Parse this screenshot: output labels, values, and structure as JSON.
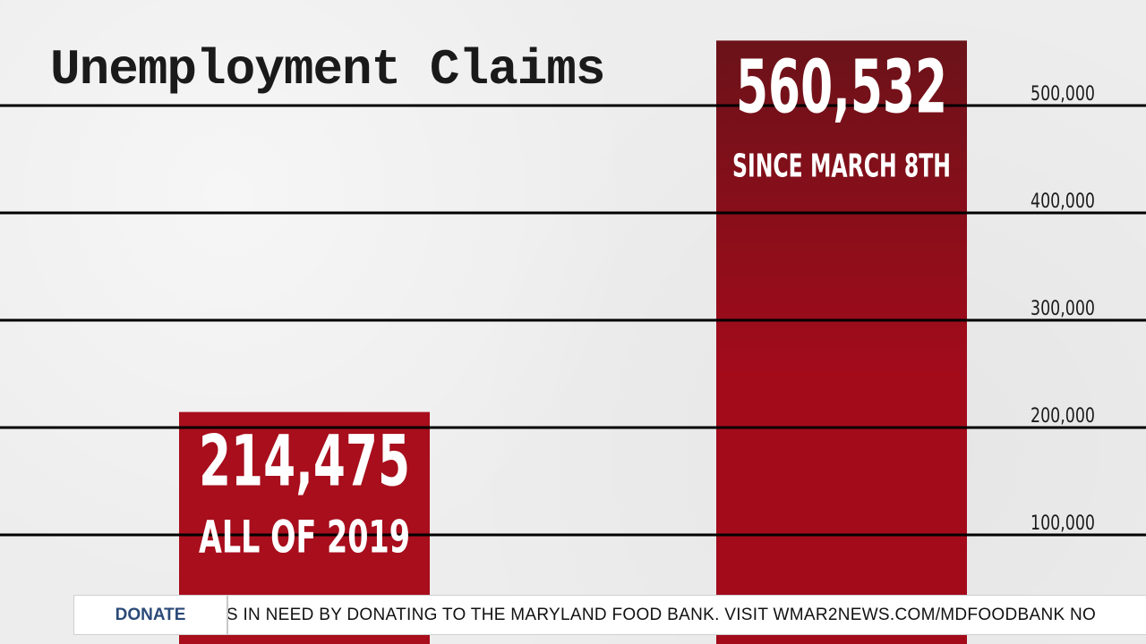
{
  "chart_data": {
    "type": "bar",
    "title": "Unemployment Claims",
    "ylim": [
      0,
      600000
    ],
    "yticks": [
      100000,
      200000,
      300000,
      400000,
      500000
    ],
    "ytick_labels": [
      "100,000",
      "200,000",
      "300,000",
      "400,000",
      "500,000"
    ],
    "grid": true,
    "tick_position": "right",
    "categories": [
      "ALL OF 2019",
      "SINCE MARCH 8TH"
    ],
    "values": [
      214475,
      560532
    ],
    "value_labels": [
      "214,475",
      "560,532"
    ],
    "bar_colors": [
      "#a80e1c",
      "#a30b1b"
    ],
    "bar_top_color": "#6b1219"
  },
  "ticker": {
    "button_label": "DONATE",
    "text": "'S IN NEED BY DONATING TO THE MARYLAND FOOD BANK.  VISIT WMAR2NEWS.COM/MDFOODBANK NO"
  }
}
